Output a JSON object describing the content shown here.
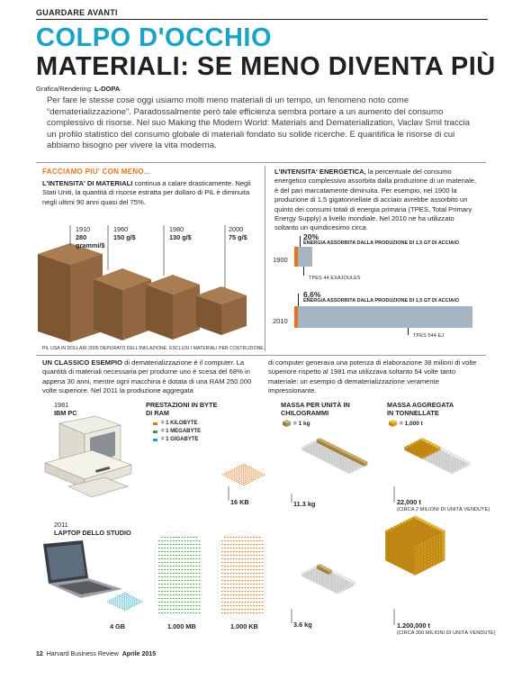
{
  "section_tag": "GUARDARE AVANTI",
  "title_line1": "COLPO D'OCCHIO",
  "title_line2": "MATERIALI: SE MENO DIVENTA PIÙ",
  "credit_prefix": "Grafica/Rendering:",
  "credit_name": "L-DOPA",
  "intro": "Per fare le stesse cose oggi usiamo molti meno materiali di un tempo, un fenomeno noto come “dematerializzazione”. Paradossalmente però tale efficienza sembra portare a un aumento del consumo complessivo di risorse. Nel suo Making the Modern World: Materials and Dematerialization, Vaclav Smil traccia un profilo statistico del consumo globale di materiali fondato su solide ricerche. E quantifica le risorse di cui abbiamo bisogno per vivere la vita moderna.",
  "left_col": {
    "kicker": "FACCIAMO PIU' CON MENO...",
    "lead_bold": "L'INTENSITA' DI MATERIALI",
    "lead_text": " continua a calare drasticamente. Negli Stati Uniti, la quantità di risorse estratta per dollaro di PIL è diminuita negli ultimi 90 anni quasi del 75%.",
    "footnote": "PIL USA IN DOLLARI 2005 DEPURATO DELL'INFLAZIONE, ESCLUSI I MATERIALI PER COSTRUZIONE.",
    "boxes": [
      {
        "year": "1910",
        "value": "280 grammi/$",
        "grams": 280
      },
      {
        "year": "1960",
        "value": "150 g/$",
        "grams": 150
      },
      {
        "year": "1980",
        "value": "130 g/$",
        "grams": 130
      },
      {
        "year": "2000",
        "value": "75 g/$",
        "grams": 75
      }
    ]
  },
  "right_col": {
    "lead_bold": "L'INTENSITA' ENERGETICA,",
    "lead_text": " la percentuale del consumo energetico complessivo assorbita dalla produzione di un materiale, è del pari marcatamente diminuita. Per esempio, nel 1900 la produzione di 1,5 gigatonnellate di acciaio avrebbe assorbito un quinto dei consumi totali di energia primaria (TPES, Total Primary Energy Supply) a livello mondiale. Nel 2010 ne ha utilizzato soltanto un quindicesimo circa.",
    "bars": [
      {
        "year": "1900",
        "pct_label": "20%",
        "pct": 20,
        "caption": "ENERGIA ASSORBITA DALLA PRODUZIONE DI 1,5 GT DI ACCIAIO",
        "tpes_label": "TPES 44 EXAJOULES",
        "tpes": 44
      },
      {
        "year": "2010",
        "pct_label": "6,6%",
        "pct": 6.6,
        "caption": "ENERGIA ASSORBITA DALLA PRODUZIONE DI 1,5 GT DI ACCIAIO",
        "tpes_label": "TPES 544 EJ",
        "tpes": 544
      }
    ]
  },
  "example": {
    "lead_bold": "UN CLASSICO ESEMPIO",
    "text_left": " di dematerializzazione è il computer. La quantità di materiali necessaria per produrne uno è scesa del 68% in appena 30 anni, mentre ogni macchina è dotata di una RAM 250.000 volte superiore. Nel 2011 la produzione aggregata",
    "text_right": "di computer generava una potenza di elaborazione 38 milioni di volte superiore rispetto al 1981 ma utilizzava soltanto 54 volte tanto materiale: un esempio di dematerializzazione veramente impressionante."
  },
  "infographic": {
    "pc_year": "1981",
    "pc_name": "IBM PC",
    "laptop_year": "2011",
    "laptop_name": "LAPTOP DELLO STUDIO",
    "col_perf_title": "PRESTAZIONI IN BYTE DI RAM",
    "col_mass_title": "MASSA PER UNITÀ IN CHILOGRAMMI",
    "col_agg_title": "MASSA AGGREGATA IN TONNELLATE",
    "legend": [
      {
        "label": "= 1 KILOBYTE",
        "color": "#e8731c"
      },
      {
        "label": "= 1 MEGABYTE",
        "color": "#3a9a3a"
      },
      {
        "label": "= 1 GIGABYTE",
        "color": "#1aa3c4"
      }
    ],
    "mass_unit": "= 1 kg",
    "agg_unit": "= 1,000 t",
    "pc_ram": "16 KB",
    "pc_mass": "11.3 kg",
    "pc_agg": "22,000 t",
    "pc_agg_note": "(CIRCA 2 MILIONI DI UNITÀ VENDUTE)",
    "lap_ram_gb": "4 GB",
    "lap_ram_mb": "1.000 MB",
    "lap_ram_kb": "1.000 KB",
    "lap_mass": "3.6 kg",
    "lap_agg": "1.200,000 t",
    "lap_agg_note": "(CIRCA 300 MILIONI DI UNITÀ VENDUTE)"
  },
  "footer": {
    "page": "12",
    "magazine": "Harvard Business Review",
    "issue": "Aprile 2015"
  }
}
